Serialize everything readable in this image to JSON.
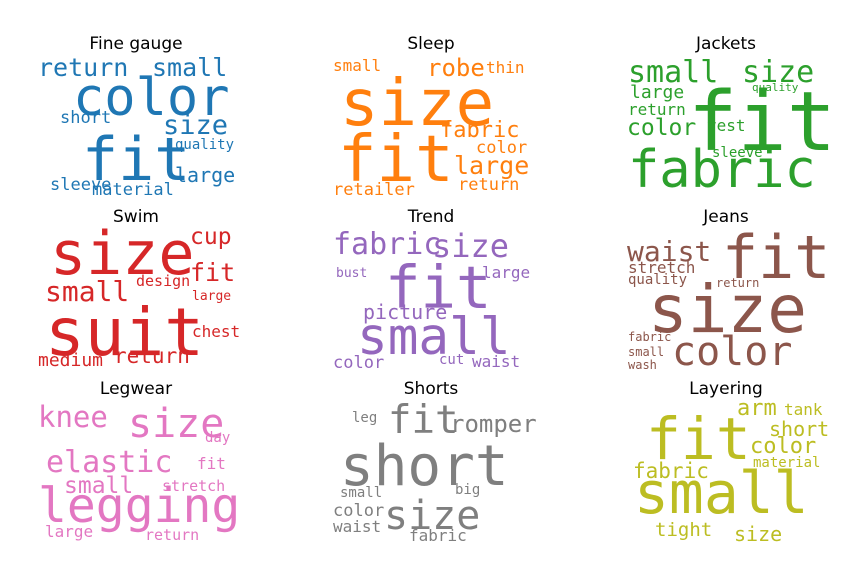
{
  "chart_data": [
    {
      "type": "wordcloud",
      "title": "Fine gauge",
      "color": "#1f77b4",
      "words": [
        {
          "text": "color",
          "weight": 0.78
        },
        {
          "text": "fit",
          "weight": 1.0
        },
        {
          "text": "return",
          "weight": 0.42
        },
        {
          "text": "small",
          "weight": 0.42
        },
        {
          "text": "size",
          "weight": 0.44
        },
        {
          "text": "short",
          "weight": 0.3
        },
        {
          "text": "large",
          "weight": 0.34
        },
        {
          "text": "sleeve",
          "weight": 0.3
        },
        {
          "text": "material",
          "weight": 0.3
        },
        {
          "text": "quality",
          "weight": 0.22
        }
      ]
    },
    {
      "type": "wordcloud",
      "title": "Sleep",
      "color": "#ff7f0e",
      "words": [
        {
          "text": "size",
          "weight": 1.0
        },
        {
          "text": "fit",
          "weight": 1.0
        },
        {
          "text": "small",
          "weight": 0.3
        },
        {
          "text": "robe",
          "weight": 0.42
        },
        {
          "text": "thin",
          "weight": 0.3
        },
        {
          "text": "fabric",
          "weight": 0.42
        },
        {
          "text": "color",
          "weight": 0.3
        },
        {
          "text": "large",
          "weight": 0.44
        },
        {
          "text": "retailer",
          "weight": 0.32
        },
        {
          "text": "return",
          "weight": 0.32
        }
      ]
    },
    {
      "type": "wordcloud",
      "title": "Jackets",
      "color": "#2ca02c",
      "words": [
        {
          "text": "fit",
          "weight": 1.0
        },
        {
          "text": "fabric",
          "weight": 0.88
        },
        {
          "text": "small",
          "weight": 0.5
        },
        {
          "text": "size",
          "weight": 0.5
        },
        {
          "text": "large",
          "weight": 0.32
        },
        {
          "text": "return",
          "weight": 0.28
        },
        {
          "text": "color",
          "weight": 0.4
        },
        {
          "text": "vest",
          "weight": 0.28
        },
        {
          "text": "quality",
          "weight": 0.18
        },
        {
          "text": "sleeve",
          "weight": 0.25
        }
      ]
    },
    {
      "type": "wordcloud",
      "title": "Swim",
      "color": "#d62728",
      "words": [
        {
          "text": "size",
          "weight": 1.0
        },
        {
          "text": "suit",
          "weight": 1.0
        },
        {
          "text": "cup",
          "weight": 0.42
        },
        {
          "text": "fit",
          "weight": 0.42
        },
        {
          "text": "small",
          "weight": 0.5
        },
        {
          "text": "design",
          "weight": 0.28
        },
        {
          "text": "large",
          "weight": 0.24
        },
        {
          "text": "chest",
          "weight": 0.3
        },
        {
          "text": "medium",
          "weight": 0.32
        },
        {
          "text": "return",
          "weight": 0.36
        }
      ]
    },
    {
      "type": "wordcloud",
      "title": "Trend",
      "color": "#9467bd",
      "words": [
        {
          "text": "fit",
          "weight": 1.0
        },
        {
          "text": "small",
          "weight": 0.95
        },
        {
          "text": "fabric",
          "weight": 0.55
        },
        {
          "text": "size",
          "weight": 0.6
        },
        {
          "text": "bust",
          "weight": 0.25
        },
        {
          "text": "large",
          "weight": 0.28
        },
        {
          "text": "picture",
          "weight": 0.38
        },
        {
          "text": "color",
          "weight": 0.3
        },
        {
          "text": "cut",
          "weight": 0.26
        },
        {
          "text": "waist",
          "weight": 0.3
        }
      ]
    },
    {
      "type": "wordcloud",
      "title": "Jeans",
      "color": "#8c564b",
      "words": [
        {
          "text": "size",
          "weight": 1.0
        },
        {
          "text": "fit",
          "weight": 0.88
        },
        {
          "text": "color",
          "weight": 0.68
        },
        {
          "text": "waist",
          "weight": 0.48
        },
        {
          "text": "stretch",
          "weight": 0.3
        },
        {
          "text": "quality",
          "weight": 0.26
        },
        {
          "text": "return",
          "weight": 0.22
        },
        {
          "text": "fabric",
          "weight": 0.22
        },
        {
          "text": "small",
          "weight": 0.22
        },
        {
          "text": "wash",
          "weight": 0.22
        }
      ]
    },
    {
      "type": "wordcloud",
      "title": "Legwear",
      "color": "#e377c2",
      "words": [
        {
          "text": "legging",
          "weight": 1.0
        },
        {
          "text": "size",
          "weight": 0.68
        },
        {
          "text": "knee",
          "weight": 0.5
        },
        {
          "text": "elastic",
          "weight": 0.66
        },
        {
          "text": "small",
          "weight": 0.46
        },
        {
          "text": "day",
          "weight": 0.26
        },
        {
          "text": "fit",
          "weight": 0.32
        },
        {
          "text": "stretch",
          "weight": 0.28
        },
        {
          "text": "large",
          "weight": 0.3
        },
        {
          "text": "return",
          "weight": 0.28
        }
      ]
    },
    {
      "type": "wordcloud",
      "title": "Shorts",
      "color": "#7f7f7f",
      "words": [
        {
          "text": "short",
          "weight": 1.0
        },
        {
          "text": "fit",
          "weight": 0.65
        },
        {
          "text": "size",
          "weight": 0.72
        },
        {
          "text": "romper",
          "weight": 0.4
        },
        {
          "text": "leg",
          "weight": 0.28
        },
        {
          "text": "small",
          "weight": 0.28
        },
        {
          "text": "big",
          "weight": 0.28
        },
        {
          "text": "color",
          "weight": 0.34
        },
        {
          "text": "waist",
          "weight": 0.32
        },
        {
          "text": "fabric",
          "weight": 0.3
        }
      ]
    },
    {
      "type": "wordcloud",
      "title": "Layering",
      "color": "#bcbd22",
      "words": [
        {
          "text": "small",
          "weight": 1.0
        },
        {
          "text": "fit",
          "weight": 0.95
        },
        {
          "text": "arm",
          "weight": 0.4
        },
        {
          "text": "tank",
          "weight": 0.28
        },
        {
          "text": "short",
          "weight": 0.4
        },
        {
          "text": "color",
          "weight": 0.4
        },
        {
          "text": "material",
          "weight": 0.26
        },
        {
          "text": "fabric",
          "weight": 0.4
        },
        {
          "text": "tight",
          "weight": 0.34
        },
        {
          "text": "size",
          "weight": 0.36
        }
      ]
    }
  ]
}
